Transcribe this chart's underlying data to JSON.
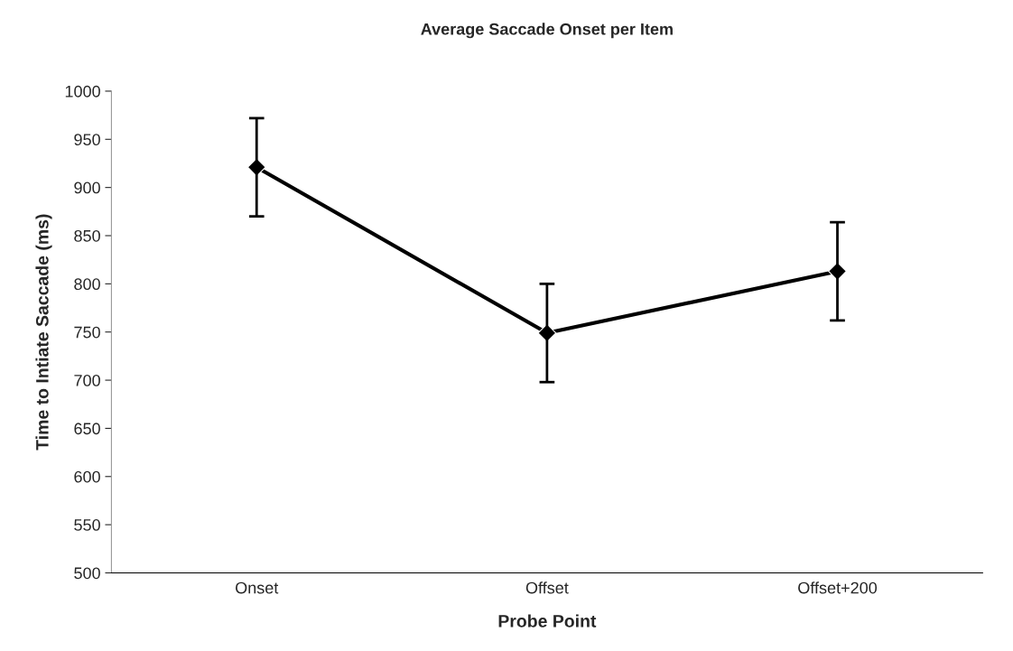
{
  "chart_data": {
    "type": "line",
    "title": "Average Saccade Onset per Item",
    "xlabel": "Probe Point",
    "ylabel": "Time to Intiate Saccade (ms)",
    "categories": [
      "Onset",
      "Offset",
      "Offset+200"
    ],
    "series": [
      {
        "color": "#000000",
        "values": [
          921,
          749,
          813
        ],
        "errors": [
          51,
          51,
          51
        ]
      }
    ],
    "ylim": [
      500,
      1000
    ],
    "yticks": [
      500,
      550,
      600,
      650,
      700,
      750,
      800,
      850,
      900,
      950,
      1000
    ],
    "marker": "diamond",
    "line_style": "solid",
    "grid": false,
    "legend": false
  }
}
